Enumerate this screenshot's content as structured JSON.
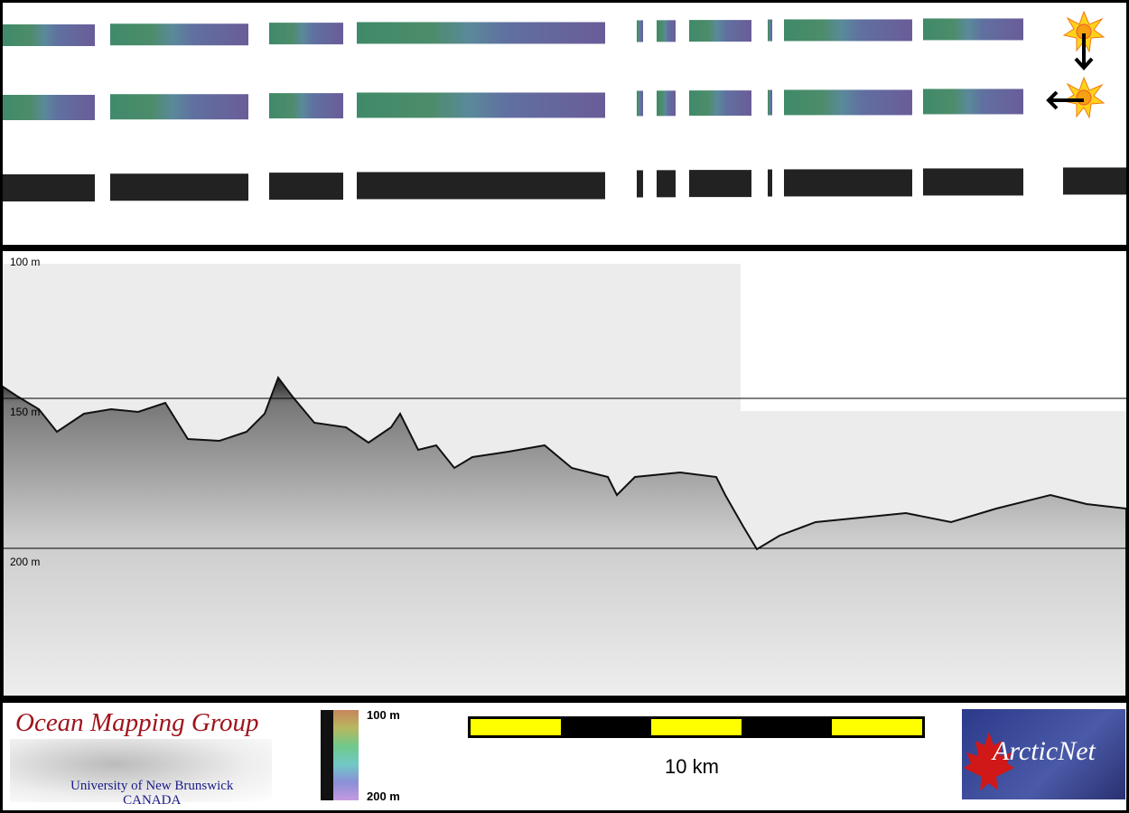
{
  "swath": {
    "rows": [
      "backscatter-color-top",
      "backscatter-color-middle",
      "backscatter-grayscale-bottom"
    ],
    "marker_icons": [
      "sun-burst-icon",
      "arrow-down-icon",
      "arrow-left-icon"
    ]
  },
  "profile": {
    "depth_labels": [
      "100 m",
      "150 m",
      "200 m"
    ]
  },
  "footer": {
    "omg_logo": {
      "title": "Ocean Mapping Group",
      "subtitle": "University of New Brunswick",
      "country": "CANADA"
    },
    "colorbar": {
      "top_label": "100 m",
      "bottom_label": "200 m"
    },
    "scale_bar": {
      "label": "10 km",
      "colors": [
        "#ffff00",
        "#000000"
      ]
    },
    "arcticnet_logo": {
      "text": "ArcticNet"
    }
  }
}
